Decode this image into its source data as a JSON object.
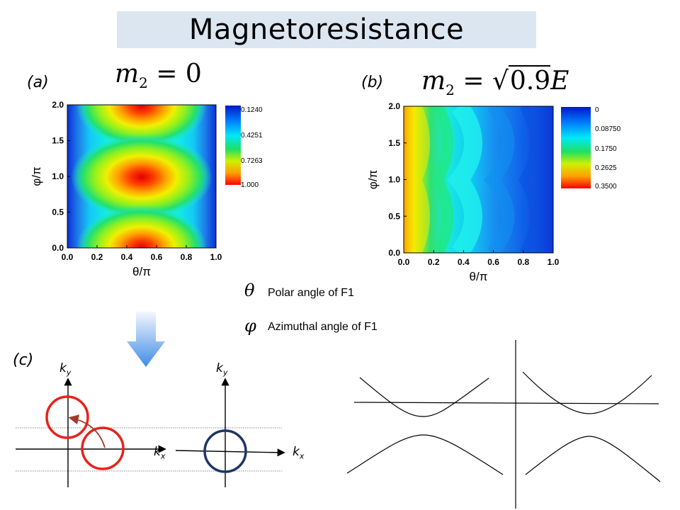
{
  "title": "Magnetoresistance",
  "panel_a": {
    "label": "(a)",
    "equation": {
      "symbol": "m",
      "subscript": "2",
      "rhs": "= 0"
    },
    "colorbar_ticks": [
      "0.1240",
      "0.4251",
      "0.7263",
      "1.000"
    ]
  },
  "panel_b": {
    "label": "(b)",
    "equation": {
      "symbol": "m",
      "subscript": "2",
      "rhs_prefix": "=",
      "rhs_sqrt": "0.9",
      "rhs_var": "E"
    },
    "colorbar_ticks": [
      "0",
      "0.08750",
      "0.1750",
      "0.2625",
      "0.3500"
    ]
  },
  "panel_c": {
    "label": "(c)",
    "axis_labels": {
      "ky_left": "k",
      "ky_left_sub": "y",
      "kx_left": "k",
      "kx_left_sub": "x",
      "ky_right": "k",
      "ky_right_sub": "y",
      "kx_right": "k",
      "kx_right_sub": "x"
    }
  },
  "legend": [
    {
      "symbol": "θ",
      "text": "Polar angle of F1"
    },
    {
      "symbol": "φ",
      "text": "Azimuthal angle of F1"
    }
  ],
  "chart_data": [
    {
      "type": "heatmap",
      "title": "",
      "xlabel": "θ/π",
      "ylabel": "φ/π",
      "xlim": [
        0.0,
        1.0
      ],
      "ylim": [
        0.0,
        2.0
      ],
      "x_ticks": [
        "0.0",
        "0.2",
        "0.4",
        "0.6",
        "0.8",
        "1.0"
      ],
      "y_ticks": [
        "0.0",
        "0.5",
        "1.0",
        "1.5",
        "2.0"
      ],
      "colorbar_range": [
        0.124,
        1.0
      ],
      "colormap": "jet-reversed (blue = low, red = high)",
      "features": "maxima (~1.0) at θ/π = 0.5 for φ/π = 0, 1, 2; minima (~0.124) near θ/π = 0 and 1"
    },
    {
      "type": "heatmap",
      "title": "",
      "xlabel": "θ/π",
      "ylabel": "φ/π",
      "xlim": [
        0.0,
        1.0
      ],
      "ylim": [
        0.0,
        2.0
      ],
      "x_ticks": [
        "0.0",
        "0.2",
        "0.4",
        "0.6",
        "0.8",
        "1.0"
      ],
      "y_ticks": [
        "0.0",
        "0.5",
        "1.0",
        "1.5",
        "2.0"
      ],
      "colorbar_range": [
        0,
        0.35
      ],
      "colormap": "jet-reversed (blue = low, red = high)",
      "features": "maximum (~0.35) along θ/π ≈ 0; wavy contours with period π in φ"
    }
  ],
  "colors": {
    "title_background": "#dce6f1",
    "circle_red": "#e8221c",
    "circle_navy": "#1f3566",
    "arrow_gradient_top": "#f4f7fc",
    "arrow_gradient_bottom": "#3f8ce8"
  }
}
